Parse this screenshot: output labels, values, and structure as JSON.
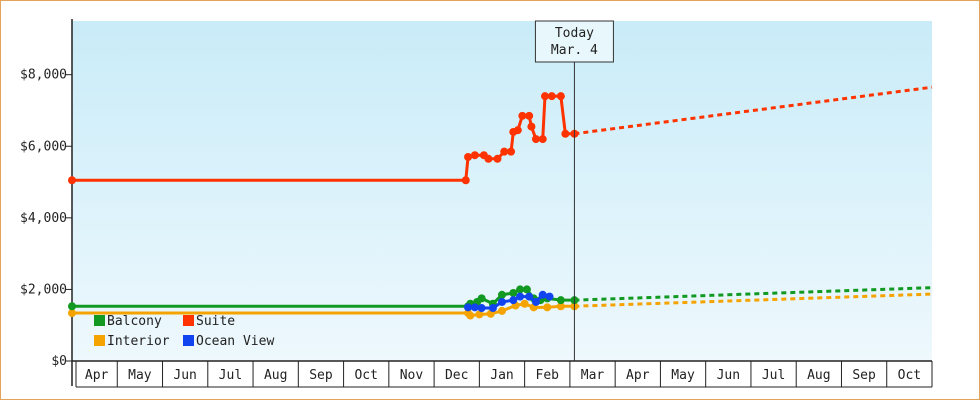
{
  "chart_data": {
    "type": "line",
    "title": "",
    "xlabel": "",
    "ylabel": "",
    "ylim": [
      0,
      9500
    ],
    "y_ticks": [
      "$0",
      "$2,000",
      "$4,000",
      "$6,000",
      "$8,000"
    ],
    "y_tick_values": [
      0,
      2000,
      4000,
      6000,
      8000
    ],
    "x_labels": [
      "Apr",
      "May",
      "Jun",
      "Jul",
      "Aug",
      "Sep",
      "Oct",
      "Nov",
      "Dec",
      "Jan",
      "Feb",
      "Mar",
      "Apr",
      "May",
      "Jun",
      "Jul",
      "Aug",
      "Sep",
      "Oct"
    ],
    "x_range": [
      0,
      19
    ],
    "grid": false,
    "background": {
      "top": "#c9ecf8",
      "bottom": "#eef8fd"
    },
    "today": {
      "line1": "Today",
      "line2": "Mar. 4",
      "x": 11.1
    },
    "legend": {
      "position": "bottom-left"
    },
    "series": [
      {
        "name": "Suite",
        "color": "#ff3300",
        "points": [
          [
            0,
            5050
          ],
          [
            8.7,
            5050
          ],
          [
            8.75,
            5700
          ],
          [
            8.9,
            5750
          ],
          [
            9.1,
            5750
          ],
          [
            9.2,
            5650
          ],
          [
            9.4,
            5650
          ],
          [
            9.55,
            5850
          ],
          [
            9.7,
            5850
          ],
          [
            9.75,
            6400
          ],
          [
            9.85,
            6450
          ],
          [
            9.95,
            6850
          ],
          [
            10.1,
            6850
          ],
          [
            10.15,
            6550
          ],
          [
            10.25,
            6200
          ],
          [
            10.4,
            6200
          ],
          [
            10.45,
            7400
          ],
          [
            10.6,
            7400
          ],
          [
            10.8,
            7400
          ],
          [
            10.9,
            6350
          ],
          [
            11.1,
            6350
          ]
        ],
        "forecast": [
          [
            11.1,
            6350
          ],
          [
            19,
            7650
          ]
        ]
      },
      {
        "name": "Balcony",
        "color": "#119922",
        "points": [
          [
            0,
            1530
          ],
          [
            8.75,
            1530
          ],
          [
            8.8,
            1600
          ],
          [
            8.95,
            1650
          ],
          [
            9.05,
            1750
          ],
          [
            9.3,
            1600
          ],
          [
            9.5,
            1850
          ],
          [
            9.75,
            1900
          ],
          [
            9.9,
            2000
          ],
          [
            10.05,
            2000
          ],
          [
            10.2,
            1750
          ],
          [
            10.35,
            1700
          ],
          [
            10.5,
            1750
          ],
          [
            10.8,
            1700
          ],
          [
            11.1,
            1700
          ]
        ],
        "forecast": [
          [
            11.1,
            1700
          ],
          [
            19,
            2050
          ]
        ]
      },
      {
        "name": "Ocean View",
        "color": "#1144ee",
        "points": [
          [
            8.75,
            1500
          ],
          [
            8.9,
            1500
          ],
          [
            9.05,
            1480
          ],
          [
            9.3,
            1480
          ],
          [
            9.5,
            1650
          ],
          [
            9.75,
            1700
          ],
          [
            9.9,
            1800
          ],
          [
            10.1,
            1800
          ],
          [
            10.25,
            1650
          ],
          [
            10.4,
            1850
          ],
          [
            10.55,
            1800
          ]
        ],
        "forecast": []
      },
      {
        "name": "Interior",
        "color": "#f5a300",
        "points": [
          [
            0,
            1340
          ],
          [
            8.75,
            1340
          ],
          [
            8.8,
            1270
          ],
          [
            9.0,
            1300
          ],
          [
            9.25,
            1320
          ],
          [
            9.5,
            1400
          ],
          [
            9.8,
            1550
          ],
          [
            10.0,
            1600
          ],
          [
            10.2,
            1500
          ],
          [
            10.5,
            1500
          ],
          [
            10.8,
            1530
          ],
          [
            11.1,
            1530
          ]
        ],
        "forecast": [
          [
            11.1,
            1530
          ],
          [
            19,
            1870
          ]
        ]
      }
    ],
    "legend_order": [
      "Balcony",
      "Suite",
      "Interior",
      "Ocean View"
    ]
  }
}
